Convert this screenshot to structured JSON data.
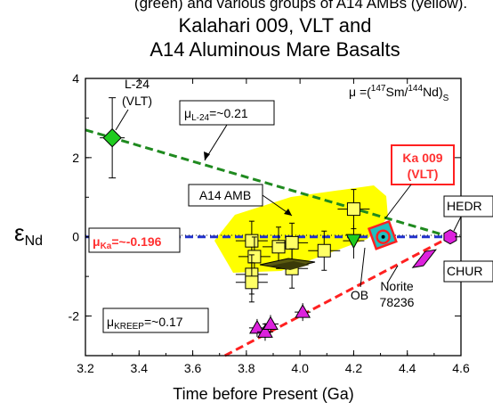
{
  "chart_data": {
    "type": "scatter",
    "top_cut_text": "(green) and various groups of A14 AMBs (yellow).",
    "title_line1": "Kalahari 009, VLT and",
    "title_line2": "A14 Aluminous Mare Basalts",
    "xlabel": "Time before Present (Ga)",
    "ylabel": "εNd",
    "xlim": [
      3.2,
      4.6
    ],
    "ylim": [
      -3,
      4
    ],
    "x_ticks": [
      "3.2",
      "3.4",
      "3.6",
      "3.8",
      "4.0",
      "4.2",
      "4.4",
      "4.6"
    ],
    "y_ticks": [
      "-2",
      "0",
      "2",
      "4"
    ],
    "y_tick_values": [
      -2,
      0,
      2,
      4
    ],
    "x_tick_values": [
      3.2,
      3.4,
      3.6,
      3.8,
      4.0,
      4.2,
      4.4,
      4.6
    ],
    "mu_formula": {
      "mu": "μ =(",
      "n1": "147",
      "sm": "Sm/",
      "n2": "144",
      "nd": "Nd)",
      "sub": "S"
    },
    "labels": {
      "l24_point": "L-24",
      "l24_vlt": "(VLT)",
      "mu_l24_mu": "μ",
      "mu_l24_sub": "L-24",
      "mu_l24_val": "=~0.21",
      "mu_ka_mu": "μ",
      "mu_ka_sub": "Ka",
      "mu_ka_val": "=~-0.196",
      "mu_kreep_mu": "μ",
      "mu_kreep_sub": "KREEP",
      "mu_kreep_val": "=~0.17",
      "a14_amb": "A14 AMB",
      "ka009_line1": "Ka 009",
      "ka009_line2": "(VLT)",
      "hedr": "HEDR",
      "chur": "CHUR",
      "ob": "OB",
      "norite_line1": "Norite",
      "norite_line2": "78236"
    },
    "series": [
      {
        "name": "A14 AMB",
        "points": [
          [
            3.82,
            -0.1
          ],
          [
            3.83,
            -0.5
          ],
          [
            3.82,
            -0.95
          ],
          [
            3.82,
            -1.15
          ],
          [
            3.92,
            -0.25
          ],
          [
            3.97,
            -0.15
          ],
          [
            3.97,
            -0.8
          ],
          [
            4.09,
            -0.35
          ],
          [
            4.2,
            0.7
          ]
        ]
      },
      {
        "name": "L-24",
        "points": [
          [
            3.3,
            2.5
          ]
        ]
      },
      {
        "name": "OB",
        "points": [
          [
            4.2,
            -0.1
          ]
        ]
      },
      {
        "name": "Ka 009",
        "points": [
          [
            4.31,
            0.0
          ]
        ]
      },
      {
        "name": "KREEP",
        "points": [
          [
            3.84,
            -2.3
          ],
          [
            3.87,
            -2.4
          ],
          [
            3.89,
            -2.2
          ],
          [
            4.01,
            -1.9
          ]
        ]
      },
      {
        "name": "Norite 78236",
        "points": [
          [
            4.46,
            -0.55
          ]
        ]
      },
      {
        "name": "HEDR",
        "points": [
          [
            4.56,
            0.0
          ]
        ]
      },
      {
        "name": "CHUR",
        "points": [
          [
            4.56,
            -0.85
          ]
        ]
      }
    ],
    "lines": [
      {
        "name": "L-24",
        "from": [
          3.2,
          2.7
        ],
        "to": [
          4.56,
          0.0
        ],
        "color": "#1f8a1f"
      },
      {
        "name": "Ka",
        "from": [
          3.2,
          0.0
        ],
        "to": [
          4.56,
          0.0
        ],
        "color": "#2233cc"
      },
      {
        "name": "KREEP",
        "from": [
          3.72,
          -3.0
        ],
        "to": [
          4.56,
          0.0
        ],
        "color": "#ff2020"
      }
    ],
    "colors": {
      "yellow_field": "#ffff00",
      "l24_green": "#20cc20",
      "magenta": "#dd22dd",
      "cyan": "#20c0c0",
      "ka_red": "#ff2020",
      "label_red": "#ff3030"
    }
  }
}
